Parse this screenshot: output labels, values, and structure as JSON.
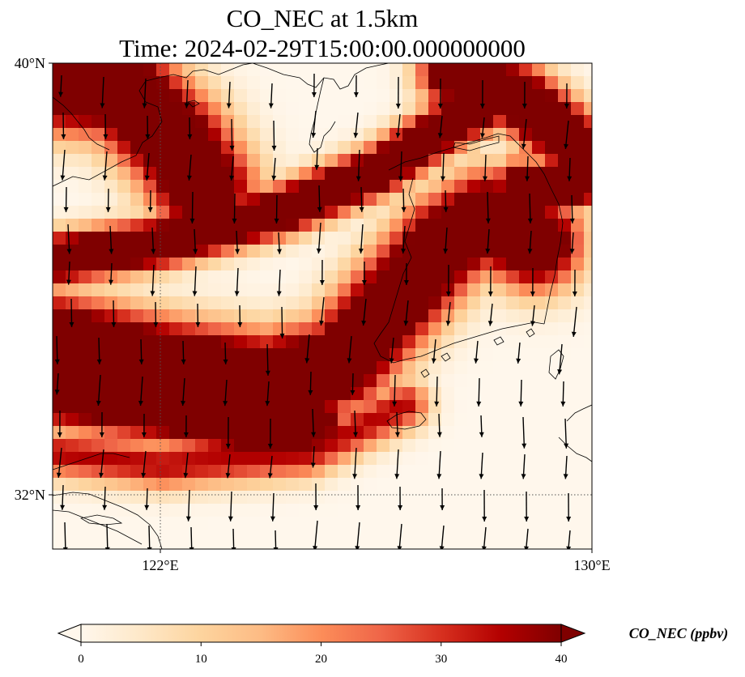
{
  "title": {
    "line1": "CO_NEC at 1.5km",
    "line2": "Time: 2024-02-29T15:00:00.000000000"
  },
  "map": {
    "variable": "CO_NEC",
    "level": "1.5km",
    "lon_range": [
      120,
      130
    ],
    "lat_range": [
      31,
      40
    ],
    "gridlines": {
      "lon": [
        122
      ],
      "lat": [
        32
      ]
    },
    "x_ticks": [
      {
        "value": 122,
        "label": "122°E"
      },
      {
        "value": 130,
        "label": "130°E"
      }
    ],
    "y_ticks": [
      {
        "value": 40,
        "label": "40°N"
      },
      {
        "value": 32,
        "label": "32°N"
      }
    ]
  },
  "colorbar": {
    "label": "CO_NEC (ppbv)",
    "min": 0,
    "max": 40,
    "extend": "both",
    "ticks": [
      {
        "value": 0,
        "label": "0"
      },
      {
        "value": 10,
        "label": "10"
      },
      {
        "value": 20,
        "label": "20"
      },
      {
        "value": 30,
        "label": "30"
      },
      {
        "value": 40,
        "label": "40"
      }
    ],
    "colormap": "OrRd",
    "stops": [
      "#fff7ec",
      "#fee8c8",
      "#fdd49e",
      "#fdbb84",
      "#fc8d59",
      "#ef6548",
      "#d7301f",
      "#b30000",
      "#7f0000"
    ]
  },
  "colors": {
    "background": "#ffffff",
    "saturated": "#7f0000",
    "low": "#fff7ec",
    "frame": "#000000"
  }
}
